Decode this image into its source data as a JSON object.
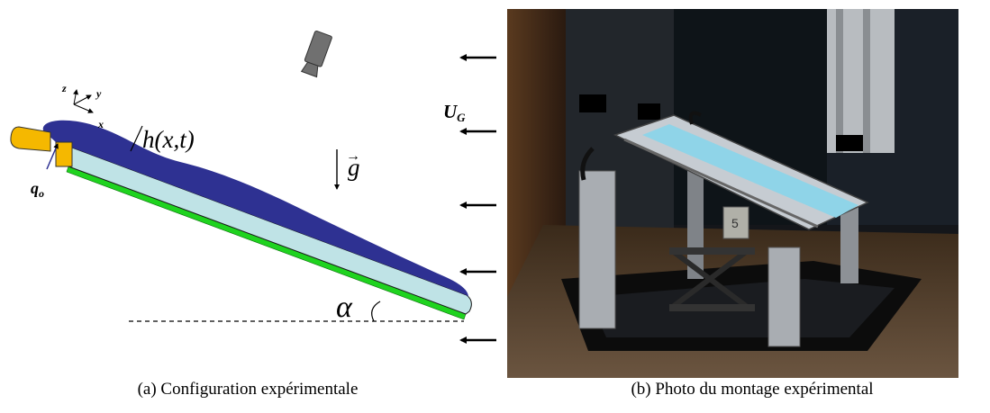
{
  "panel_a": {
    "label_height": "h(x,t)",
    "label_gravity": "g",
    "label_gravity_arrow": "→",
    "label_flow": "q",
    "label_flow_sub": "o",
    "label_wind": "U",
    "label_wind_sub": "G",
    "label_angle": "α",
    "axis_z": "z",
    "axis_y": "y",
    "axis_x": "x",
    "caption": "(a)  Configuration expérimentale"
  },
  "panel_b": {
    "caption": "(b)  Photo du montage expérimental",
    "photo_label": "5"
  },
  "colors": {
    "film": "#2e3192",
    "plate": "#bfe3e6",
    "plate_edge": "#1a1a1a",
    "base": "#1fd31f",
    "feeder": "#f5b800",
    "camera": "#707070"
  }
}
